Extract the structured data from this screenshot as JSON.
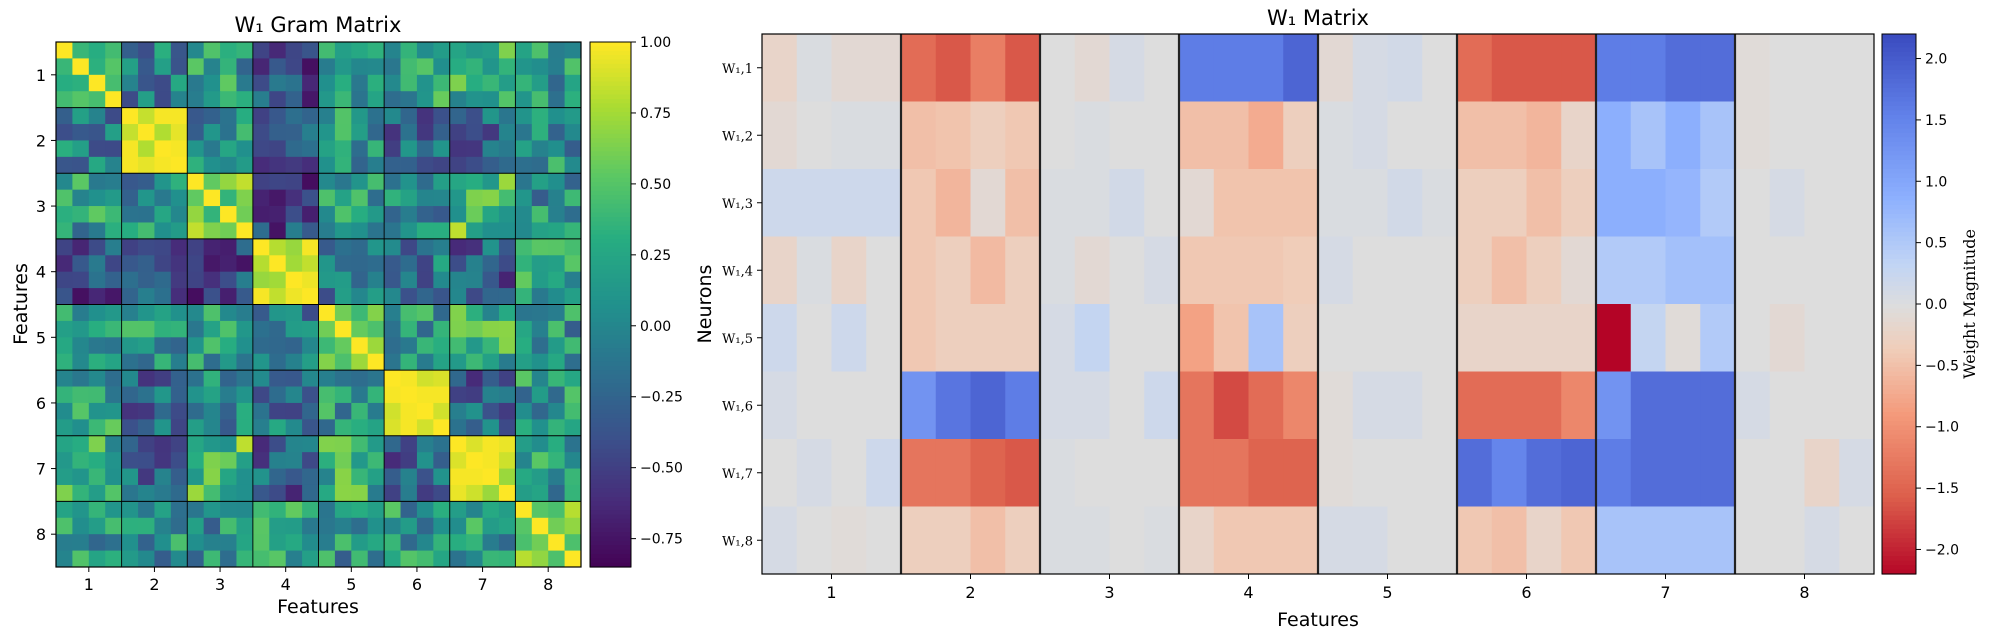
{
  "chart_data": [
    {
      "type": "heatmap",
      "title": "W₁ Gram Matrix",
      "xlabel": "Features",
      "ylabel": "Features",
      "group_labels": [
        "1",
        "2",
        "3",
        "4",
        "5",
        "6",
        "7",
        "8"
      ],
      "group_size": 4,
      "colormap": "viridis",
      "vmin": -0.85,
      "vmax": 1.0,
      "colorbar_ticks": [
        1.0,
        0.75,
        0.5,
        0.25,
        0.0,
        -0.25,
        -0.5,
        -0.75
      ],
      "colorbar_tick_labels": [
        "1.00",
        "0.75",
        "0.50",
        "0.25",
        "0.00",
        "−0.25",
        "−0.50",
        "−0.75"
      ],
      "block_values": [
        [
          0.55,
          -0.05,
          0.15,
          -0.45,
          0.05,
          0.2,
          0.3,
          0.1
        ],
        [
          -0.05,
          1.0,
          0.05,
          -0.25,
          0.1,
          -0.2,
          -0.2,
          0.1
        ],
        [
          0.15,
          0.05,
          0.6,
          -0.4,
          0.15,
          0.05,
          0.45,
          0.05
        ],
        [
          -0.45,
          -0.25,
          -0.4,
          0.95,
          -0.2,
          -0.1,
          -0.3,
          0.25
        ],
        [
          0.05,
          0.1,
          0.15,
          -0.2,
          0.6,
          0.15,
          0.3,
          0.1
        ],
        [
          0.2,
          -0.2,
          0.05,
          -0.1,
          0.15,
          1.0,
          -0.3,
          0.15
        ],
        [
          0.3,
          -0.2,
          0.45,
          -0.3,
          0.3,
          -0.3,
          0.9,
          0.15
        ],
        [
          0.1,
          0.1,
          0.05,
          0.25,
          0.1,
          0.15,
          0.15,
          0.6
        ]
      ]
    },
    {
      "type": "heatmap",
      "title": "W₁ Matrix",
      "xlabel": "Features",
      "ylabel": "Neurons",
      "row_labels": [
        "W₁,1",
        "W₁,2",
        "W₁,3",
        "W₁,4",
        "W₁,5",
        "W₁,6",
        "W₁,7",
        "W₁,8"
      ],
      "col_group_labels": [
        "1",
        "2",
        "3",
        "4",
        "5",
        "6",
        "7",
        "8"
      ],
      "group_size": 4,
      "colormap": "coolwarm_reversed",
      "vmin": -2.2,
      "vmax": 2.2,
      "colorbar_label": "Weight Magnitude",
      "colorbar_ticks": [
        2.0,
        1.5,
        1.0,
        0.5,
        0.0,
        -0.5,
        -1.0,
        -1.5,
        -2.0
      ],
      "colorbar_tick_labels": [
        "2.0",
        "1.5",
        "1.0",
        "0.5",
        "0.0",
        "−0.5",
        "−1.0",
        "−1.5",
        "−2.0"
      ],
      "values": [
        [
          -0.2,
          0.05,
          -0.1,
          -0.1,
          -1.4,
          -1.6,
          -1.2,
          -1.6,
          0.0,
          -0.1,
          0.1,
          0.0,
          1.6,
          1.6,
          1.6,
          1.9,
          -0.1,
          0.1,
          0.15,
          0.0,
          -1.4,
          -1.6,
          -1.6,
          -1.6,
          1.6,
          1.6,
          1.8,
          1.8,
          -0.05,
          0.0,
          0.0,
          0.0
        ],
        [
          -0.1,
          0.0,
          0.05,
          0.05,
          -0.5,
          -0.45,
          -0.3,
          -0.4,
          0.0,
          0.05,
          0.0,
          0.0,
          -0.5,
          -0.5,
          -0.7,
          -0.3,
          0.05,
          0.1,
          0.0,
          0.0,
          -0.5,
          -0.5,
          -0.6,
          -0.2,
          0.9,
          0.6,
          0.9,
          0.6,
          -0.05,
          0.0,
          0.0,
          0.0
        ],
        [
          0.2,
          0.2,
          0.2,
          0.2,
          -0.4,
          -0.6,
          -0.1,
          -0.5,
          0.05,
          0.05,
          0.15,
          0.0,
          -0.1,
          -0.45,
          -0.45,
          -0.45,
          0.05,
          0.05,
          0.15,
          0.05,
          -0.3,
          -0.3,
          -0.5,
          -0.3,
          0.9,
          0.9,
          0.8,
          0.5,
          0.0,
          0.1,
          0.0,
          0.0
        ],
        [
          -0.2,
          0.05,
          -0.2,
          0.0,
          -0.4,
          -0.3,
          -0.55,
          -0.3,
          0.05,
          -0.1,
          0.0,
          0.1,
          -0.4,
          -0.4,
          -0.4,
          -0.35,
          0.1,
          0.0,
          0.0,
          0.0,
          -0.3,
          -0.5,
          -0.3,
          -0.1,
          0.5,
          0.5,
          0.65,
          0.65,
          0.0,
          0.0,
          0.0,
          0.0
        ],
        [
          0.2,
          0.0,
          0.2,
          0.0,
          -0.4,
          -0.3,
          -0.3,
          -0.3,
          0.1,
          0.3,
          0.0,
          0.0,
          -0.8,
          -0.45,
          0.6,
          -0.3,
          0.0,
          0.0,
          0.0,
          0.0,
          -0.2,
          -0.2,
          -0.2,
          -0.2,
          -2.2,
          0.3,
          -0.05,
          0.5,
          0.0,
          -0.1,
          0.0,
          0.0
        ],
        [
          0.1,
          0.0,
          0.0,
          0.0,
          1.3,
          1.7,
          1.9,
          1.6,
          0.1,
          0.1,
          0.0,
          0.2,
          -1.3,
          -1.7,
          -1.4,
          -1.1,
          -0.05,
          0.1,
          0.1,
          0.0,
          -1.4,
          -1.4,
          -1.4,
          -1.1,
          1.3,
          1.8,
          1.8,
          1.8,
          0.1,
          0.0,
          0.0,
          0.0
        ],
        [
          0.0,
          0.1,
          0.0,
          0.2,
          -1.3,
          -1.3,
          -1.5,
          -1.6,
          0.05,
          0.0,
          0.0,
          0.0,
          -1.3,
          -1.3,
          -1.5,
          -1.5,
          -0.05,
          0.0,
          0.0,
          0.0,
          1.8,
          1.5,
          1.8,
          1.9,
          1.6,
          1.8,
          1.8,
          1.8,
          0.0,
          0.0,
          -0.2,
          0.1
        ],
        [
          0.1,
          0.0,
          -0.05,
          0.0,
          -0.3,
          -0.3,
          -0.5,
          -0.3,
          0.05,
          0.05,
          0.0,
          0.05,
          -0.2,
          -0.4,
          -0.4,
          -0.4,
          0.1,
          0.1,
          0.0,
          0.0,
          -0.4,
          -0.5,
          -0.2,
          -0.4,
          0.6,
          0.6,
          0.6,
          0.6,
          0.0,
          0.0,
          0.1,
          0.0
        ]
      ]
    }
  ]
}
